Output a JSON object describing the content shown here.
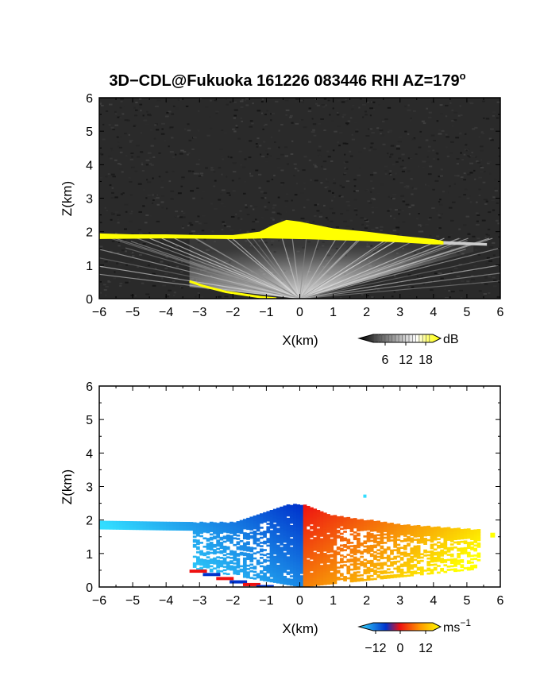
{
  "chart_data": [
    {
      "type": "heatmap",
      "title": "3D−CDL@Fukuoka 161226 083446 RHI AZ=179",
      "title_sup": "o",
      "xlabel": "X(km)",
      "ylabel": "Z(km)",
      "xlim": [
        -6,
        6
      ],
      "ylim": [
        0,
        6
      ],
      "x_ticks": [
        "−6",
        "−5",
        "−4",
        "−3",
        "−2",
        "−1",
        "0",
        "1",
        "2",
        "3",
        "4",
        "5",
        "6"
      ],
      "y_ticks": [
        "0",
        "1",
        "2",
        "3",
        "4",
        "5",
        "6"
      ],
      "background": "#2a2a2a",
      "colorbar": {
        "unit": "dB",
        "ticks": [
          "6",
          "12",
          "18"
        ],
        "range": [
          0,
          21
        ],
        "colors": [
          "#000000",
          "#ffffff",
          "#ffff00"
        ]
      },
      "layer_top_km": [
        [
          -6,
          1.95
        ],
        [
          -5,
          1.92
        ],
        [
          -4,
          1.92
        ],
        [
          -3,
          1.9
        ],
        [
          -2,
          1.9
        ],
        [
          -1.2,
          2.0
        ],
        [
          -0.8,
          2.2
        ],
        [
          -0.4,
          2.35
        ],
        [
          0,
          2.3
        ],
        [
          0.5,
          2.2
        ],
        [
          1,
          2.1
        ],
        [
          2,
          2.0
        ],
        [
          3,
          1.88
        ],
        [
          4,
          1.78
        ],
        [
          4.3,
          1.72
        ]
      ],
      "layer_bottom_km": [
        [
          -6,
          1.78
        ],
        [
          -4,
          1.8
        ],
        [
          -2,
          1.78
        ],
        [
          -1,
          1.8
        ],
        [
          0,
          1.78
        ],
        [
          1,
          1.75
        ],
        [
          2,
          1.72
        ],
        [
          3,
          1.68
        ],
        [
          4,
          1.62
        ],
        [
          4.3,
          1.62
        ]
      ],
      "surface_return_km": [
        [
          -3.3,
          0.52
        ],
        [
          -2.9,
          0.38
        ],
        [
          -2.2,
          0.2
        ],
        [
          -1.2,
          0.05
        ],
        [
          -0.7,
          0.0
        ]
      ]
    },
    {
      "type": "heatmap",
      "xlabel": "X(km)",
      "ylabel": "Z(km)",
      "xlim": [
        -6,
        6
      ],
      "ylim": [
        0,
        6
      ],
      "x_ticks": [
        "−6",
        "−5",
        "−4",
        "−3",
        "−2",
        "−1",
        "0",
        "1",
        "2",
        "3",
        "4",
        "5",
        "6"
      ],
      "y_ticks": [
        "0",
        "1",
        "2",
        "3",
        "4",
        "5",
        "6"
      ],
      "colorbar": {
        "unit": "ms",
        "unit_sup": "−1",
        "ticks": [
          "−12",
          "0",
          "12"
        ],
        "range": [
          -18,
          18
        ],
        "colors": [
          "#33ddff",
          "#0033cc",
          "#ee1111",
          "#ff9900",
          "#ffff00"
        ]
      },
      "velocity_pattern": "negative (blue) left of X≈0, positive (red/yellow) right of X≈0",
      "layer_top_km": [
        [
          -6,
          1.95
        ],
        [
          -4,
          1.92
        ],
        [
          -2,
          1.9
        ],
        [
          -1,
          2.25
        ],
        [
          -0.3,
          2.45
        ],
        [
          0.2,
          2.4
        ],
        [
          1,
          2.1
        ],
        [
          3,
          1.85
        ],
        [
          5.2,
          1.7
        ]
      ]
    }
  ]
}
